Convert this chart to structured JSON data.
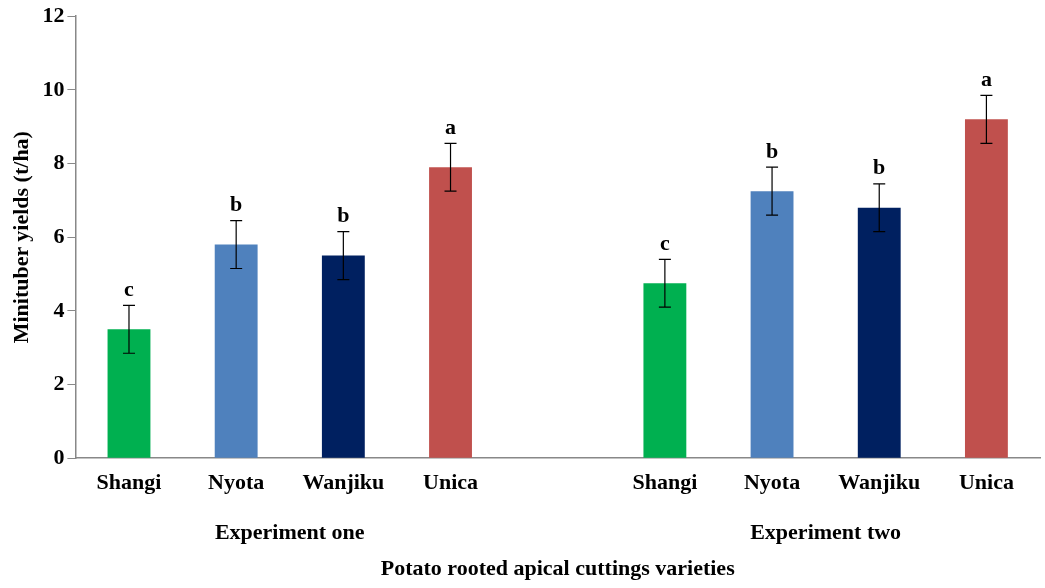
{
  "chart_data": {
    "type": "bar",
    "xlabel": "Potato rooted apical cuttings varieties",
    "ylabel": "Minituber yields (t/ha)",
    "categories": [
      "Shangi",
      "Nyota",
      "Wanjiku",
      "Unica",
      null,
      "Shangi",
      "Nyota",
      "Wanjiku",
      "Unica"
    ],
    "values": [
      3.5,
      5.8,
      5.5,
      7.9,
      null,
      4.75,
      7.25,
      6.8,
      9.2
    ],
    "colors": [
      "#00b050",
      "#4f81bd",
      "#002060",
      "#c0504d",
      "#ffffff",
      "#00b050",
      "#4f81bd",
      "#002060",
      "#c0504d"
    ],
    "errors": [
      0.65,
      0.65,
      0.65,
      0.65,
      null,
      0.65,
      0.65,
      0.65,
      0.65
    ],
    "value_labels": [
      "c",
      "b",
      "b",
      "a",
      null,
      "c",
      "b",
      "b",
      "a"
    ],
    "annotations": [
      "Experiment one",
      "Experiment two"
    ],
    "ylim": [
      0,
      12
    ],
    "yticks": [
      0,
      2,
      4,
      6,
      8,
      10,
      12
    ],
    "grid": false,
    "legend": false
  }
}
